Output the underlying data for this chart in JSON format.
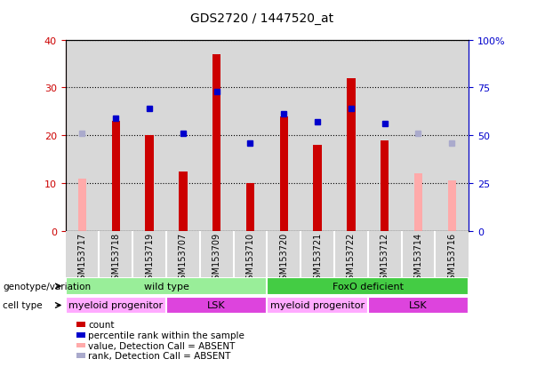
{
  "title": "GDS2720 / 1447520_at",
  "samples": [
    "GSM153717",
    "GSM153718",
    "GSM153719",
    "GSM153707",
    "GSM153709",
    "GSM153710",
    "GSM153720",
    "GSM153721",
    "GSM153722",
    "GSM153712",
    "GSM153714",
    "GSM153716"
  ],
  "count_values": [
    null,
    23,
    20,
    12.5,
    37,
    10,
    24,
    18,
    32,
    19,
    null,
    null
  ],
  "count_absent": [
    11,
    null,
    null,
    null,
    null,
    null,
    null,
    null,
    null,
    null,
    12,
    10.5
  ],
  "percentile_values": [
    null,
    59,
    64,
    51,
    73,
    46,
    61,
    57,
    64,
    56,
    null,
    null
  ],
  "percentile_absent": [
    51,
    null,
    null,
    null,
    null,
    null,
    null,
    null,
    null,
    null,
    51,
    46
  ],
  "ylim_left": [
    0,
    40
  ],
  "ylim_right": [
    0,
    100
  ],
  "yticks_left": [
    0,
    10,
    20,
    30,
    40
  ],
  "yticks_right": [
    0,
    25,
    50,
    75,
    100
  ],
  "bar_color_present": "#cc0000",
  "bar_color_absent": "#ffaaaa",
  "dot_color_present": "#0000cc",
  "dot_color_absent": "#aaaacc",
  "col_bg_color": "#d8d8d8",
  "plot_bg": "#ffffff",
  "genotype_groups": [
    {
      "label": "wild type",
      "start": 0,
      "end": 5,
      "color": "#99ee99"
    },
    {
      "label": "FoxO deficient",
      "start": 6,
      "end": 11,
      "color": "#44cc44"
    }
  ],
  "cell_type_groups": [
    {
      "label": "myeloid progenitor",
      "start": 0,
      "end": 2,
      "color": "#ffaaff"
    },
    {
      "label": "LSK",
      "start": 3,
      "end": 5,
      "color": "#dd44dd"
    },
    {
      "label": "myeloid progenitor",
      "start": 6,
      "end": 8,
      "color": "#ffaaff"
    },
    {
      "label": "LSK",
      "start": 9,
      "end": 11,
      "color": "#dd44dd"
    }
  ],
  "legend_items": [
    {
      "label": "count",
      "color": "#cc0000"
    },
    {
      "label": "percentile rank within the sample",
      "color": "#0000cc"
    },
    {
      "label": "value, Detection Call = ABSENT",
      "color": "#ffaaaa"
    },
    {
      "label": "rank, Detection Call = ABSENT",
      "color": "#aaaacc"
    }
  ],
  "left_axis_color": "#cc0000",
  "right_axis_color": "#0000cc",
  "bar_width": 0.25
}
